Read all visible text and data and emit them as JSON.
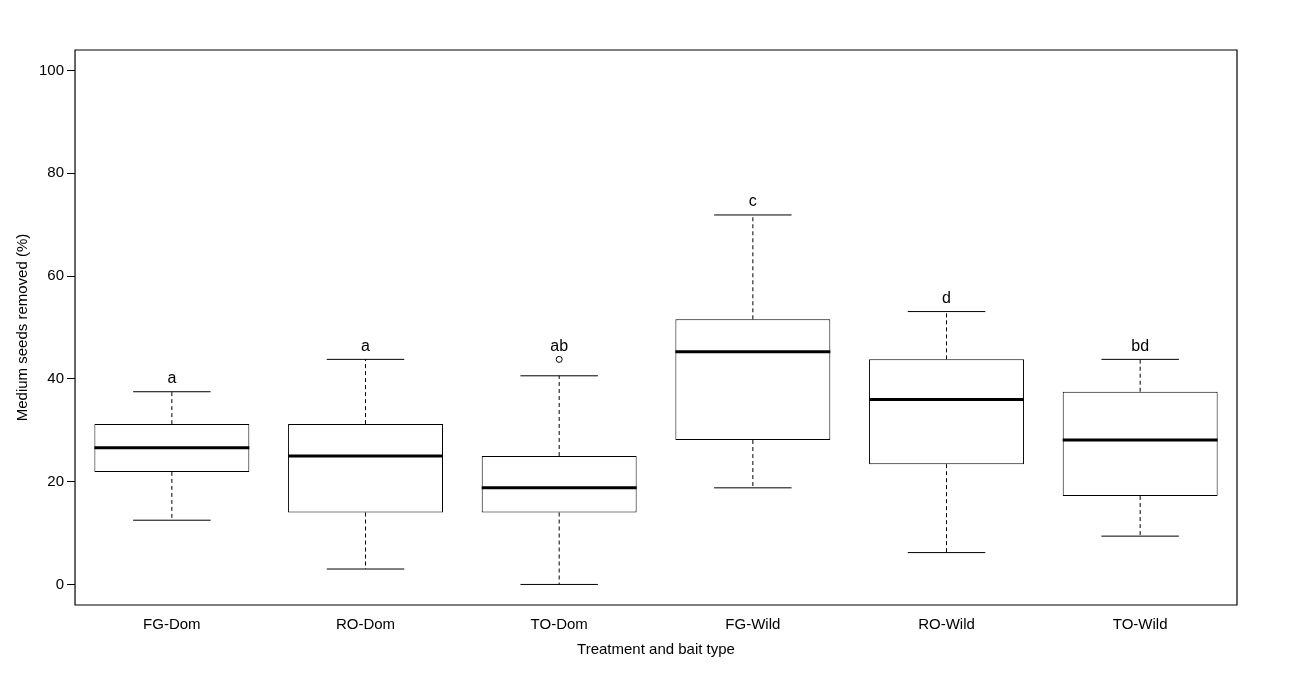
{
  "chart_data": {
    "type": "box",
    "xlabel": "Treatment and bait type",
    "ylabel": "Medium seeds removed (%)",
    "categories": [
      "FG-Dom",
      "RO-Dom",
      "TO-Dom",
      "FG-Wild",
      "RO-Wild",
      "TO-Wild"
    ],
    "boxes": [
      {
        "low": 12.5,
        "q1": 21.9,
        "median": 26.6,
        "q3": 31.2,
        "high": 37.5
      },
      {
        "low": 3,
        "q1": 14,
        "median": 25,
        "q3": 31.2,
        "high": 43.8
      },
      {
        "low": 0,
        "q1": 14,
        "median": 18.8,
        "q3": 25,
        "high": 40.6,
        "outliers": [
          43.8
        ]
      },
      {
        "low": 18.8,
        "q1": 28.1,
        "median": 45.3,
        "q3": 51.6,
        "high": 71.9
      },
      {
        "low": 6.2,
        "q1": 23.4,
        "median": 36,
        "q3": 43.8,
        "high": 53.1
      },
      {
        "low": 9.4,
        "q1": 17.2,
        "median": 28.1,
        "q3": 37.5,
        "high": 43.8
      }
    ],
    "ylim": [
      -4,
      104
    ],
    "yticks": [
      0,
      20,
      40,
      60,
      80,
      100
    ],
    "grid": false,
    "legend": false,
    "annotations": [
      "a",
      "a",
      "ab",
      "c",
      "d",
      "bd"
    ]
  }
}
